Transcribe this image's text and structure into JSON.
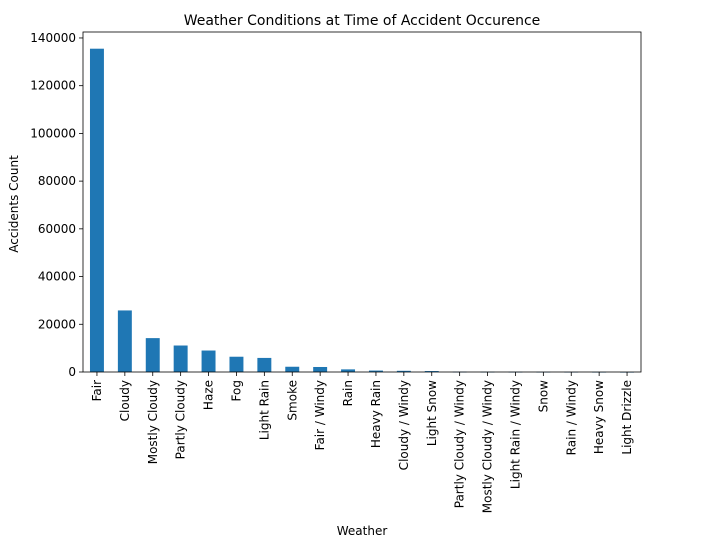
{
  "chart_data": {
    "type": "bar",
    "title": "Weather Conditions at Time of Accident Occurence",
    "xlabel": "Weather",
    "ylabel": "Accidents Count",
    "categories": [
      "Fair",
      "Cloudy",
      "Mostly Cloudy",
      "Partly Cloudy",
      "Haze",
      "Fog",
      "Light Rain",
      "Smoke",
      "Fair / Windy",
      "Rain",
      "Heavy Rain",
      "Cloudy / Windy",
      "Light Snow",
      "Partly Cloudy / Windy",
      "Mostly Cloudy / Windy",
      "Light Rain / Windy",
      "Snow",
      "Rain / Windy",
      "Heavy Snow",
      "Light Drizzle"
    ],
    "values": [
      135500,
      25800,
      14200,
      11100,
      9000,
      6400,
      5900,
      2200,
      2100,
      1100,
      600,
      500,
      400,
      100,
      80,
      60,
      50,
      40,
      30,
      20
    ],
    "ylim": [
      0,
      142500
    ],
    "yticks": [
      0,
      20000,
      40000,
      60000,
      80000,
      100000,
      120000,
      140000
    ],
    "bar_color": "#1f77b4",
    "grid": false,
    "legend": "none"
  }
}
